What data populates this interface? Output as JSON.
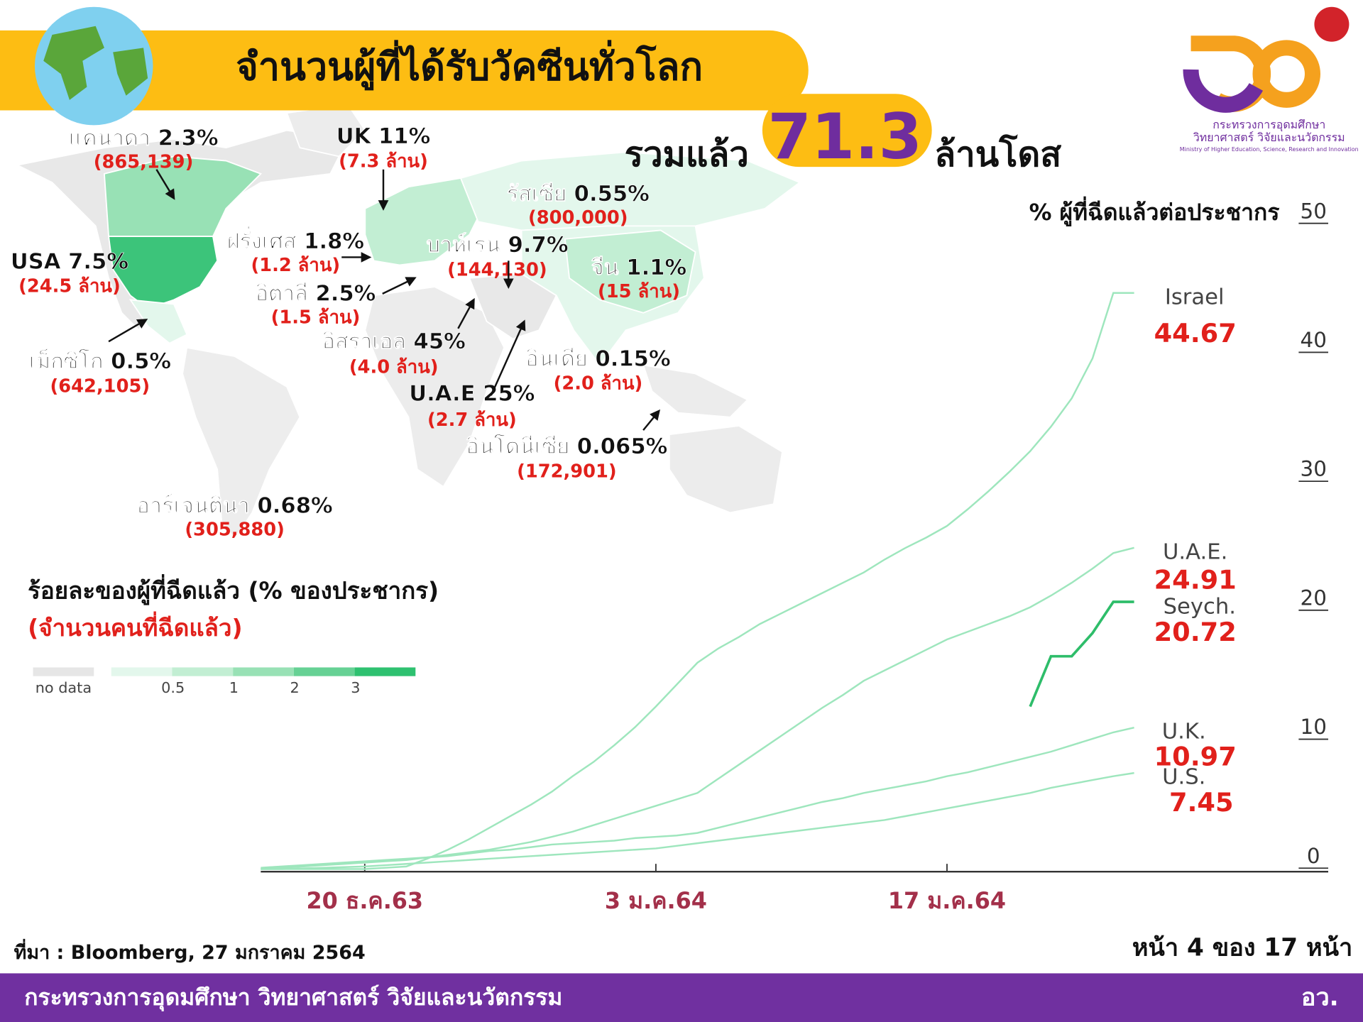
{
  "header": {
    "title": "จำนวนผู้ที่ได้รับวัคซีนทั่วโลก",
    "total_prefix": "รวมแล้ว",
    "total": "71.3",
    "total_suffix": "ล้านโดส",
    "logo_lines": [
      "กระทรวงการอุดมศึกษา",
      "วิทยาศาสตร์ วิจัยและนวัตกรรม",
      "Ministry of Higher Education, Science, Research and Innovation"
    ]
  },
  "map": {
    "title": "ร้อยละของผู้ที่ฉีดแล้ว (% ของประชากร)",
    "subtitle": "(จำนวนคนที่ฉีดแล้ว)",
    "countries": [
      {
        "label": "แคนาดา 2.3%",
        "count": "(865,139)"
      },
      {
        "label": "UK 11%",
        "count": "(7.3 ล้าน)"
      },
      {
        "label": "รัสเซีย 0.55%",
        "count": "(800,000)"
      },
      {
        "label": "ฝรั่งเศส 1.8%",
        "count": "(1.2 ล้าน)"
      },
      {
        "label": "บาห์เรน 9.7%",
        "count": "(144,130)"
      },
      {
        "label": "จีน 1.1%",
        "count": "(15 ล้าน)"
      },
      {
        "label": "USA 7.5%",
        "count": "(24.5 ล้าน)"
      },
      {
        "label": "อิตาลี 2.5%",
        "count": "(1.5 ล้าน)"
      },
      {
        "label": "อิสราเอล 45%",
        "count": "(4.0 ล้าน)"
      },
      {
        "label": "เม็กซิโก 0.5%",
        "count": "(642,105)"
      },
      {
        "label": "อินเดีย 0.15%",
        "count": "(2.0 ล้าน)"
      },
      {
        "label": "U.A.E 25%",
        "count": "(2.7 ล้าน)"
      },
      {
        "label": "อินโดนีเซีย 0.065%",
        "count": "(172,901)"
      },
      {
        "label": "อาร์เจนตินา 0.68%",
        "count": "(305,880)"
      }
    ],
    "legend": {
      "no_data": "no data",
      "ticks": [
        0.5,
        1,
        2,
        3
      ],
      "colors": [
        "#e6e6e6",
        "#e3f7ec",
        "#c2eed3",
        "#98e1b5",
        "#66d194",
        "#2ec170"
      ]
    }
  },
  "chart_data": {
    "type": "line",
    "title": "% ผู้ที่ฉีดแล้วต่อประชากร",
    "x": [
      15,
      16,
      17,
      18,
      19,
      20,
      21,
      22,
      23,
      24,
      25,
      26,
      27,
      28,
      29,
      30,
      31,
      32,
      33,
      34,
      35,
      36,
      37,
      38,
      39,
      40,
      41,
      42,
      43,
      44,
      45,
      46,
      47,
      48,
      49,
      50,
      51,
      52,
      53,
      54,
      55,
      56,
      57
    ],
    "xlim": [
      15,
      66
    ],
    "xticks": [
      {
        "value": 20,
        "label": "20 ธ.ค.63"
      },
      {
        "value": 34,
        "label": "3 ม.ค.64"
      },
      {
        "value": 48,
        "label": "17 ม.ค.64"
      }
    ],
    "ylim": [
      0,
      50
    ],
    "yticks": [
      0,
      10,
      20,
      30,
      40,
      50
    ],
    "series": [
      {
        "name": "Israel",
        "color": "#9ee6bd",
        "values": [
          0,
          0,
          0,
          0,
          0,
          0,
          0.1,
          0.2,
          0.8,
          1.5,
          2.3,
          3.2,
          4.1,
          5.0,
          6.0,
          7.2,
          8.3,
          9.6,
          11.0,
          12.6,
          14.3,
          16.0,
          17.1,
          18.0,
          19.0,
          19.8,
          20.6,
          21.4,
          22.2,
          23.0,
          24.0,
          24.9,
          25.7,
          26.6,
          27.9,
          29.3,
          30.8,
          32.4,
          34.3,
          36.5,
          39.6,
          44.67,
          44.67
        ]
      },
      {
        "name": "U.A.E.",
        "color": "#9ee6bd",
        "values": [
          0,
          0.1,
          0.2,
          0.3,
          0.4,
          0.5,
          0.6,
          0.7,
          0.9,
          1.1,
          1.3,
          1.5,
          1.8,
          2.1,
          2.5,
          2.9,
          3.4,
          3.9,
          4.4,
          4.9,
          5.4,
          5.9,
          7.0,
          8.1,
          9.2,
          10.3,
          11.4,
          12.5,
          13.5,
          14.6,
          15.4,
          16.2,
          17.0,
          17.8,
          18.4,
          19.0,
          19.6,
          20.3,
          21.2,
          22.2,
          23.3,
          24.5,
          24.91
        ]
      },
      {
        "name": "Seych.",
        "color": "#2ebd6a",
        "values": [
          null,
          null,
          null,
          null,
          null,
          null,
          null,
          null,
          null,
          null,
          null,
          null,
          null,
          null,
          null,
          null,
          null,
          null,
          null,
          null,
          null,
          null,
          null,
          null,
          null,
          null,
          null,
          null,
          null,
          null,
          null,
          null,
          null,
          null,
          null,
          null,
          null,
          12.6,
          16.5,
          16.5,
          18.3,
          20.72,
          20.72
        ]
      },
      {
        "name": "U.K.",
        "color": "#9ee6bd",
        "values": [
          0.1,
          0.2,
          0.3,
          0.4,
          0.5,
          0.6,
          0.7,
          0.8,
          0.9,
          1.0,
          1.2,
          1.4,
          1.5,
          1.7,
          1.9,
          2.0,
          2.1,
          2.2,
          2.4,
          2.5,
          2.6,
          2.8,
          3.2,
          3.6,
          4.0,
          4.4,
          4.8,
          5.2,
          5.5,
          5.9,
          6.2,
          6.5,
          6.8,
          7.2,
          7.5,
          7.9,
          8.3,
          8.7,
          9.1,
          9.6,
          10.1,
          10.6,
          10.97
        ]
      },
      {
        "name": "U.S.",
        "color": "#9ee6bd",
        "values": [
          0,
          0,
          0.05,
          0.1,
          0.15,
          0.2,
          0.3,
          0.4,
          0.5,
          0.6,
          0.7,
          0.8,
          0.9,
          1.0,
          1.1,
          1.2,
          1.3,
          1.4,
          1.5,
          1.6,
          1.8,
          2.0,
          2.2,
          2.4,
          2.6,
          2.8,
          3.0,
          3.2,
          3.4,
          3.6,
          3.8,
          4.1,
          4.4,
          4.7,
          5.0,
          5.3,
          5.6,
          5.9,
          6.3,
          6.6,
          6.9,
          7.2,
          7.45
        ]
      }
    ]
  },
  "footer": {
    "source": "ที่มา : Bloomberg, 27 มกราคม 2564",
    "page": "หน้า 4 ของ 17 หน้า",
    "ministry": "กระทรวงการอุดมศึกษา วิทยาศาสตร์ วิจัยและนวัตกรรม",
    "short": "อว."
  }
}
